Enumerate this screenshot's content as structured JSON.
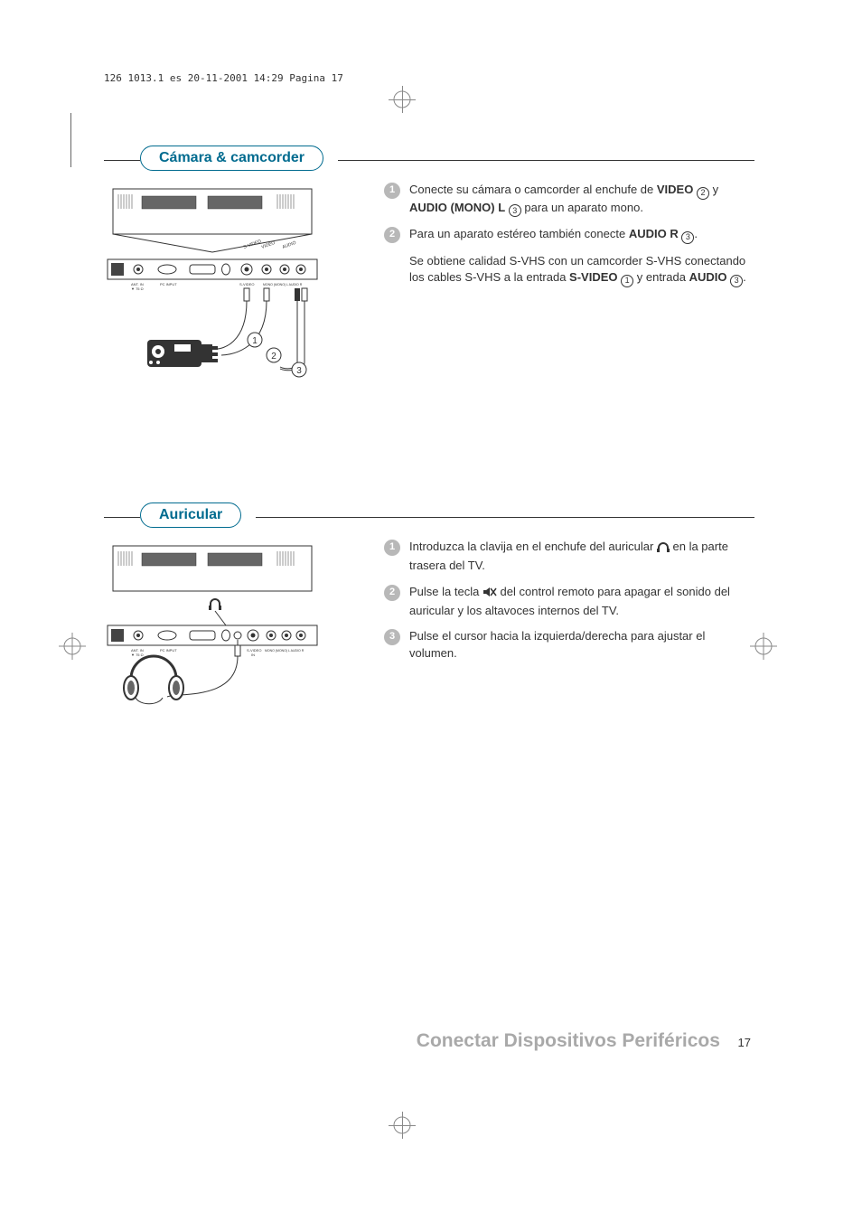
{
  "header_meta": "126 1013.1 es  20-11-2001  14:29  Pagina 17",
  "brand_color": "#006b8f",
  "bullet_gray": "#b8b8b8",
  "footer_gray": "#a9a9a9",
  "section1": {
    "heading": "Cámara & camcorder",
    "steps": [
      {
        "num": "1",
        "text_parts": [
          "Conecte su cámara o camcorder al enchufe de ",
          {
            "bold": true,
            "text": "VIDEO"
          },
          " ",
          {
            "circled": "2"
          },
          " y ",
          {
            "bold": true,
            "text": "AUDIO (MONO) L"
          },
          " ",
          {
            "circled": "3"
          },
          " para un aparato mono."
        ]
      },
      {
        "num": "2",
        "text_parts": [
          "Para un aparato estéreo también conecte ",
          {
            "bold": true,
            "text": "AUDIO R"
          },
          " ",
          {
            "circled": "3"
          },
          "."
        ]
      },
      {
        "num": "",
        "text_parts": [
          "Se obtiene calidad S-VHS con un camcorder S-VHS conectando los cables S-VHS a la entrada ",
          {
            "bold": true,
            "text": "S-VIDEO"
          },
          " ",
          {
            "circled": "1"
          },
          " y entrada ",
          {
            "bold": true,
            "text": "AUDIO"
          },
          " ",
          {
            "circled": "3"
          },
          "."
        ]
      }
    ],
    "illus_labels": {
      "port_labels": [
        "S-VIDEO",
        "VIDEO",
        "AUDIO"
      ],
      "rear_labels": [
        "ANT IN 75 Ω",
        "PC INPUT",
        "S-VIDEO IN",
        "MONO (MONO) L AUDIO R"
      ]
    }
  },
  "section2": {
    "heading": "Auricular",
    "steps": [
      {
        "num": "1",
        "text_parts": [
          "Introduzca la clavija en el enchufe del auricular ",
          {
            "icon": "headphone"
          },
          " en la parte trasera del TV."
        ]
      },
      {
        "num": "2",
        "text_parts": [
          "Pulse la tecla ",
          {
            "icon": "mute"
          },
          " del control remoto para apagar el sonido del auricular y los altavoces internos del TV."
        ]
      },
      {
        "num": "3",
        "text_parts": [
          "Pulse el cursor hacia la izquierda/derecha para ajustar el volumen."
        ]
      }
    ]
  },
  "footer": {
    "title": "Conectar Dispositivos Periféricos",
    "page": "17"
  }
}
